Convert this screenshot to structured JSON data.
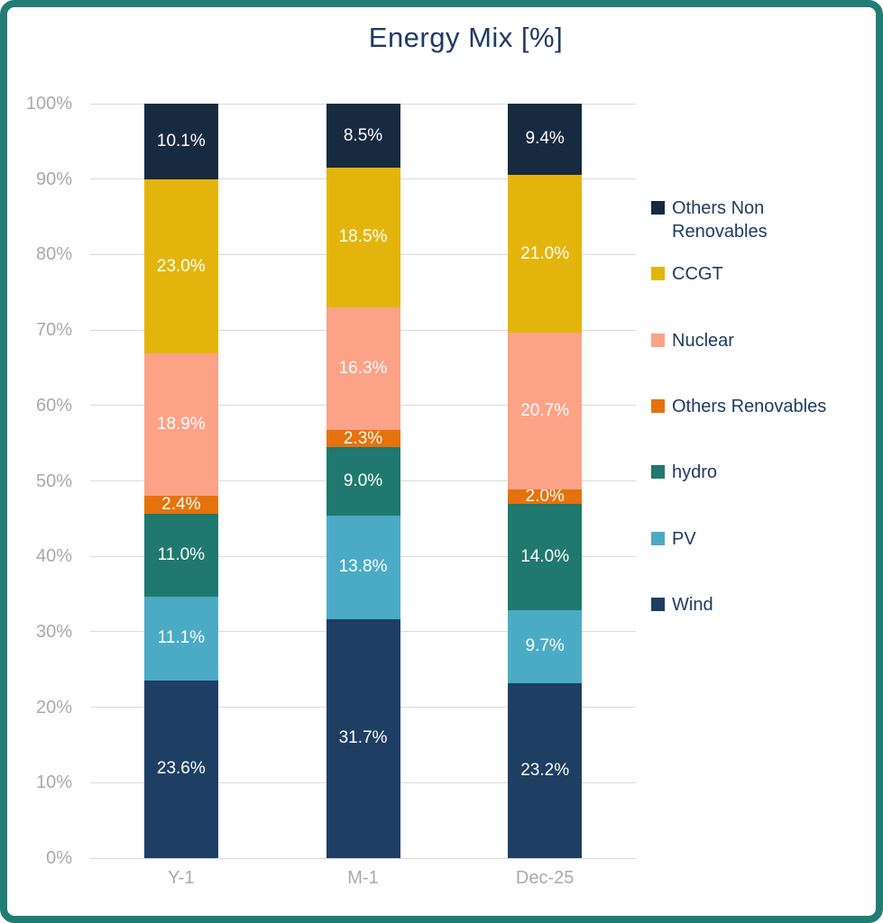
{
  "chart_data": {
    "type": "bar",
    "variant": "stacked-column-100",
    "title": "Energy Mix [%]",
    "categories": [
      "Y-1",
      "M-1",
      "Dec-25"
    ],
    "series": [
      {
        "name": "Wind",
        "color": "#1F3E63",
        "values": [
          23.6,
          31.7,
          23.2
        ]
      },
      {
        "name": "PV",
        "color": "#4BABC5",
        "values": [
          11.1,
          13.8,
          9.7
        ]
      },
      {
        "name": "hydro",
        "color": "#20786F",
        "values": [
          11.0,
          9.0,
          14.0
        ]
      },
      {
        "name": "Others Renovables",
        "color": "#E5720C",
        "values": [
          2.4,
          2.3,
          2.0
        ]
      },
      {
        "name": "Nuclear",
        "color": "#FCA287",
        "values": [
          18.9,
          16.3,
          20.7
        ]
      },
      {
        "name": "CCGT",
        "color": "#E3B50C",
        "values": [
          23.0,
          18.5,
          21.0
        ]
      },
      {
        "name": "Others Non Renovables",
        "color": "#182A40",
        "values": [
          10.1,
          8.5,
          9.4
        ]
      }
    ],
    "data_label_format": "{value}%",
    "xlabel": "",
    "ylabel": "",
    "ylim": [
      0,
      100
    ],
    "yticks": [
      0,
      10,
      20,
      30,
      40,
      50,
      60,
      70,
      80,
      90,
      100
    ],
    "ytick_labels": [
      "0%",
      "10%",
      "20%",
      "30%",
      "40%",
      "50%",
      "60%",
      "70%",
      "80%",
      "90%",
      "100%"
    ],
    "grid": true,
    "legend": {
      "position": "right",
      "items": [
        "Others Non Renovables",
        "CCGT",
        "Nuclear",
        "Others Renovables",
        "hydro",
        "PV",
        "Wind"
      ]
    }
  },
  "colors": {
    "frame_border": "#217C76",
    "title_text": "#1F3A63",
    "legend_text": "#1F3A63",
    "axis_text": "#A9A9A9",
    "gridline": "#DADADA",
    "data_label": "#FFFFFF"
  }
}
